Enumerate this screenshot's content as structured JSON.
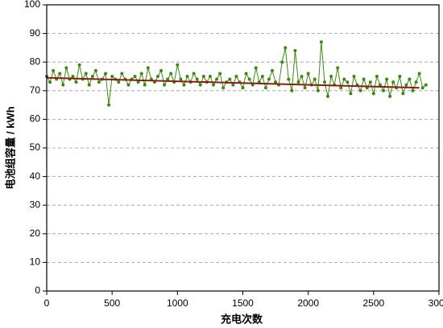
{
  "chart_data": {
    "type": "line",
    "xlabel": "充电次数",
    "ylabel": "电池组容量 / kWh",
    "xlim": [
      0,
      3000
    ],
    "xticks": [
      0,
      500,
      1000,
      1500,
      2000,
      2500,
      3000
    ],
    "ylim": [
      0,
      100
    ],
    "yticks": [
      0,
      10,
      20,
      30,
      40,
      50,
      60,
      70,
      80,
      90,
      100
    ],
    "grid": true,
    "series": [
      {
        "color": "#3a8a0e",
        "markers": true,
        "x": [
          0,
          25,
          50,
          75,
          100,
          125,
          150,
          175,
          200,
          225,
          250,
          275,
          300,
          325,
          350,
          375,
          400,
          425,
          450,
          475,
          500,
          525,
          550,
          575,
          600,
          625,
          650,
          675,
          700,
          725,
          750,
          775,
          800,
          825,
          850,
          875,
          900,
          925,
          950,
          975,
          1000,
          1025,
          1050,
          1075,
          1100,
          1125,
          1150,
          1175,
          1200,
          1225,
          1250,
          1275,
          1300,
          1325,
          1350,
          1375,
          1400,
          1425,
          1450,
          1475,
          1500,
          1525,
          1550,
          1575,
          1600,
          1625,
          1650,
          1675,
          1700,
          1725,
          1750,
          1775,
          1800,
          1825,
          1850,
          1875,
          1900,
          1925,
          1950,
          1975,
          2000,
          2025,
          2050,
          2075,
          2100,
          2125,
          2150,
          2175,
          2200,
          2225,
          2250,
          2275,
          2300,
          2325,
          2350,
          2375,
          2400,
          2425,
          2450,
          2475,
          2500,
          2525,
          2550,
          2575,
          2600,
          2625,
          2650,
          2675,
          2700,
          2725,
          2750,
          2775,
          2800,
          2825,
          2850,
          2875,
          2900
        ],
        "values": [
          75,
          73,
          77,
          74,
          76,
          72,
          78,
          74,
          75,
          73,
          79,
          74,
          76,
          72,
          75,
          77,
          73,
          74,
          76,
          65,
          75,
          74,
          73,
          76,
          74,
          72,
          74,
          75,
          73,
          76,
          72,
          78,
          74,
          73,
          75,
          77,
          72,
          74,
          76,
          73,
          79,
          74,
          72,
          75,
          73,
          76,
          74,
          72,
          75,
          73,
          75,
          72,
          74,
          76,
          71,
          73,
          74,
          72,
          75,
          73,
          71,
          76,
          74,
          72,
          78,
          73,
          75,
          71,
          74,
          77,
          73,
          72,
          80,
          85,
          74,
          70,
          84,
          73,
          75,
          71,
          76,
          72,
          74,
          70,
          87,
          73,
          68,
          75,
          72,
          78,
          71,
          74,
          73,
          69,
          75,
          72,
          70,
          74,
          71,
          73,
          69,
          75,
          72,
          70,
          74,
          68,
          73,
          71,
          75,
          69,
          72,
          74,
          70,
          73,
          76,
          71,
          72
        ]
      },
      {
        "color": "#8b1a1a",
        "markers": false,
        "x": [
          0,
          2850
        ],
        "values": [
          74.5,
          71
        ]
      }
    ]
  }
}
